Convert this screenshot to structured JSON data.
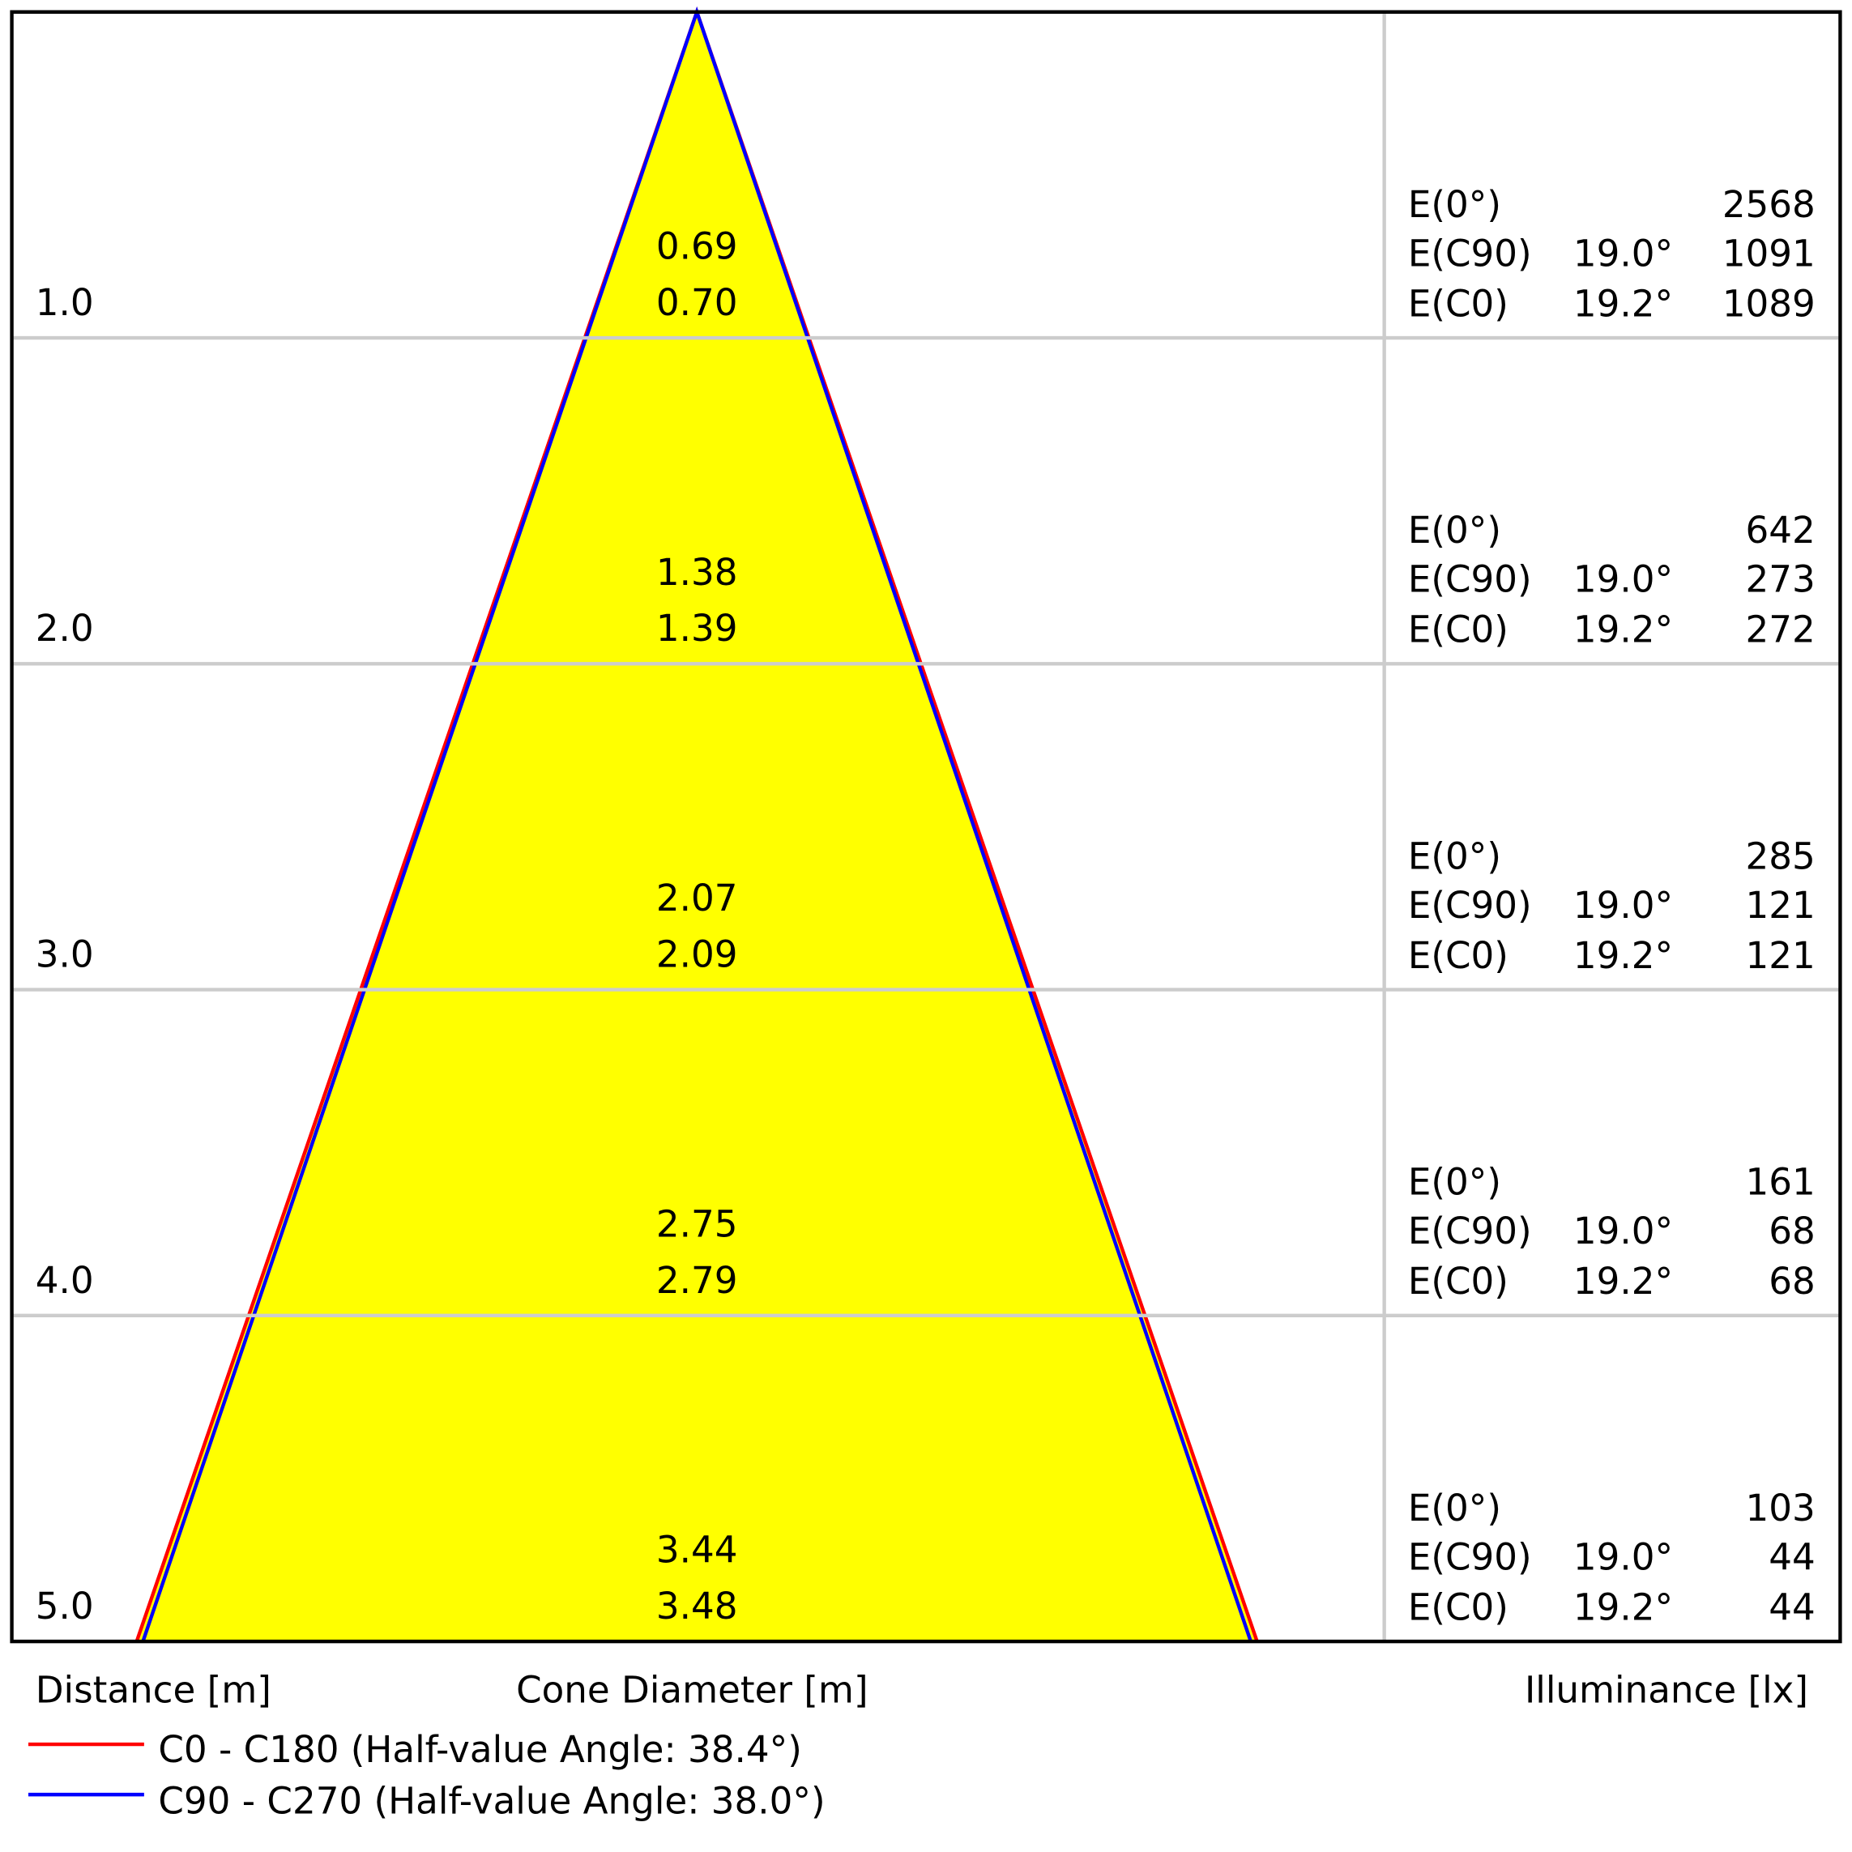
{
  "chart_data": {
    "type": "cone-diagram",
    "xlabel_distance": "Distance [m]",
    "xlabel_diameter": "Cone Diameter [m]",
    "xlabel_illuminance": "Illuminance [lx]",
    "distance_max": 5.0,
    "fill_color": "#ffff00",
    "grid": true,
    "series": [
      {
        "name": "C0 - C180 (Half-value Angle: 38.4°)",
        "half_value_angle": 38.4,
        "color": "#ff0000"
      },
      {
        "name": "C90 - C270 (Half-value Angle: 38.0°)",
        "half_value_angle": 38.0,
        "color": "#0000ff"
      }
    ],
    "rows": [
      {
        "distance": "1.0",
        "d": 1,
        "diam_c90": "0.69",
        "diam_c0": "0.70",
        "E0": "2568",
        "Ec90_angle": "19.0°",
        "Ec90": "1091",
        "Ec0_angle": "19.2°",
        "Ec0": "1089"
      },
      {
        "distance": "2.0",
        "d": 2,
        "diam_c90": "1.38",
        "diam_c0": "1.39",
        "E0": "642",
        "Ec90_angle": "19.0°",
        "Ec90": "273",
        "Ec0_angle": "19.2°",
        "Ec0": "272"
      },
      {
        "distance": "3.0",
        "d": 3,
        "diam_c90": "2.07",
        "diam_c0": "2.09",
        "E0": "285",
        "Ec90_angle": "19.0°",
        "Ec90": "121",
        "Ec0_angle": "19.2°",
        "Ec0": "121"
      },
      {
        "distance": "4.0",
        "d": 4,
        "diam_c90": "2.75",
        "diam_c0": "2.79",
        "E0": "161",
        "Ec90_angle": "19.0°",
        "Ec90": "68",
        "Ec0_angle": "19.2°",
        "Ec0": "68"
      },
      {
        "distance": "5.0",
        "d": 5,
        "diam_c90": "3.44",
        "diam_c0": "3.48",
        "E0": "103",
        "Ec90_angle": "19.0°",
        "Ec90": "44",
        "Ec0_angle": "19.2°",
        "Ec0": "44"
      }
    ],
    "row_labels": {
      "e0": "E(0°)",
      "ec90": "E(C90)",
      "ec0": "E(C0)"
    }
  }
}
